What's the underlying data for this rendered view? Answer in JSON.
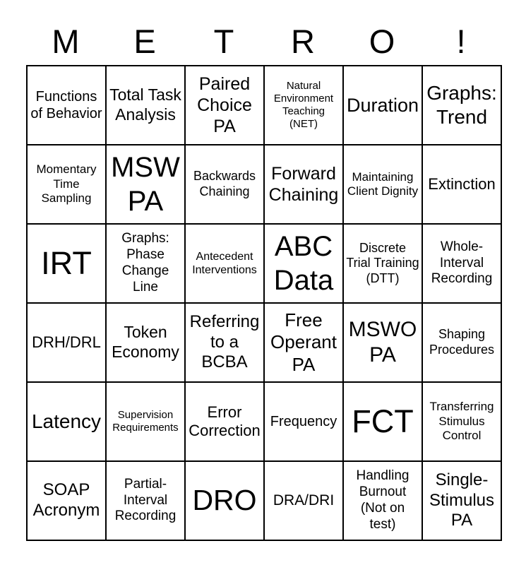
{
  "title": {
    "letters": [
      "M",
      "E",
      "T",
      "R",
      "O",
      "!"
    ]
  },
  "board": {
    "columns": 6,
    "rows": 6,
    "cells": [
      {
        "label": "Functions of Behavior",
        "size": 20
      },
      {
        "label": "Total Task Analysis",
        "size": 23
      },
      {
        "label": "Paired Choice PA",
        "size": 25
      },
      {
        "label": "Natural Environment Teaching (NET)",
        "size": 15
      },
      {
        "label": "Duration",
        "size": 27
      },
      {
        "label": "Graphs: Trend",
        "size": 28
      },
      {
        "label": "Momentary Time Sampling",
        "size": 17
      },
      {
        "label": "MSW PA",
        "size": 40
      },
      {
        "label": "Backwards Chaining",
        "size": 18
      },
      {
        "label": "Forward Chaining",
        "size": 25
      },
      {
        "label": "Maintaining Client Dignity",
        "size": 17
      },
      {
        "label": "Extinction",
        "size": 22
      },
      {
        "label": "IRT",
        "size": 45
      },
      {
        "label": "Graphs: Phase Change Line",
        "size": 19
      },
      {
        "label": "Antecedent Interventions",
        "size": 16
      },
      {
        "label": "ABC Data",
        "size": 40
      },
      {
        "label": "Discrete Trial Training (DTT)",
        "size": 18
      },
      {
        "label": "Whole-Interval Recording",
        "size": 19
      },
      {
        "label": "DRH/DRL",
        "size": 22
      },
      {
        "label": "Token Economy",
        "size": 23
      },
      {
        "label": "Referring to a BCBA",
        "size": 24
      },
      {
        "label": "Free Operant PA",
        "size": 26
      },
      {
        "label": "MSWO PA",
        "size": 30
      },
      {
        "label": "Shaping Procedures",
        "size": 18
      },
      {
        "label": "Latency",
        "size": 28
      },
      {
        "label": "Supervision Requirements",
        "size": 15
      },
      {
        "label": "Error Correction",
        "size": 22
      },
      {
        "label": "Frequency",
        "size": 20
      },
      {
        "label": "FCT",
        "size": 45
      },
      {
        "label": "Transferring Stimulus Control",
        "size": 17
      },
      {
        "label": "SOAP Acronym",
        "size": 24
      },
      {
        "label": "Partial-Interval Recording",
        "size": 19
      },
      {
        "label": "DRO",
        "size": 41
      },
      {
        "label": "DRA/DRI",
        "size": 21
      },
      {
        "label": "Handling Burnout (Not on test)",
        "size": 19
      },
      {
        "label": "Single-Stimulus PA",
        "size": 24
      }
    ]
  },
  "colors": {
    "text": "#000000",
    "border": "#000000",
    "background": "#ffffff"
  }
}
